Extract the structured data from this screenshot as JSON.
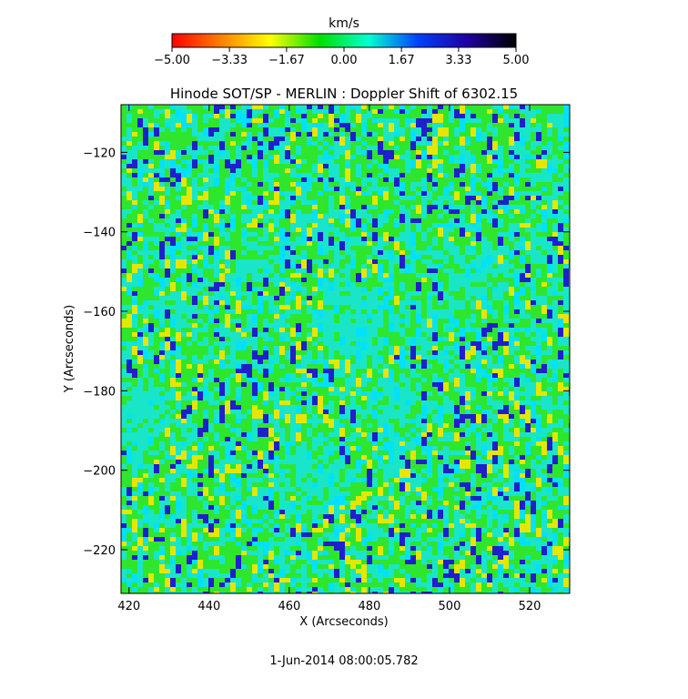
{
  "chart_data": {
    "type": "heatmap",
    "title": "Hinode SOT/SP - MERLIN : Doppler Shift of 6302.15",
    "xlabel": "X (Arcseconds)",
    "ylabel": "Y (Arcseconds)",
    "xlim": [
      418,
      530
    ],
    "ylim": [
      -231,
      -108
    ],
    "x_ticks": [
      420,
      440,
      460,
      480,
      500,
      520
    ],
    "y_ticks": [
      -120,
      -140,
      -160,
      -180,
      -200,
      -220
    ],
    "x_tick_labels": [
      "420",
      "440",
      "460",
      "480",
      "500",
      "520"
    ],
    "y_tick_labels": [
      "−120",
      "−140",
      "−160",
      "−180",
      "−200",
      "−220"
    ],
    "colorbar": {
      "unit": "km/s",
      "range": [
        -5.0,
        5.0
      ],
      "ticks": [
        -5.0,
        -3.33,
        -1.67,
        0.0,
        1.67,
        3.33,
        5.0
      ],
      "tick_labels": [
        "−5.00",
        "−3.33",
        "−1.67",
        "0.00",
        "1.67",
        "3.33",
        "5.00"
      ],
      "colors": [
        "#ff0000",
        "#ff8000",
        "#ffff00",
        "#00e000",
        "#00ffd0",
        "#0040ff",
        "#2000a0",
        "#000000"
      ]
    },
    "field_colors": {
      "green": "#2ee62e",
      "teal": "#19e6c8",
      "blue": "#1f1fcc",
      "yellow": "#e6e600",
      "cyan": "#00e1ff"
    },
    "grid": false,
    "timestamp": "1-Jun-2014 08:00:05.782"
  }
}
